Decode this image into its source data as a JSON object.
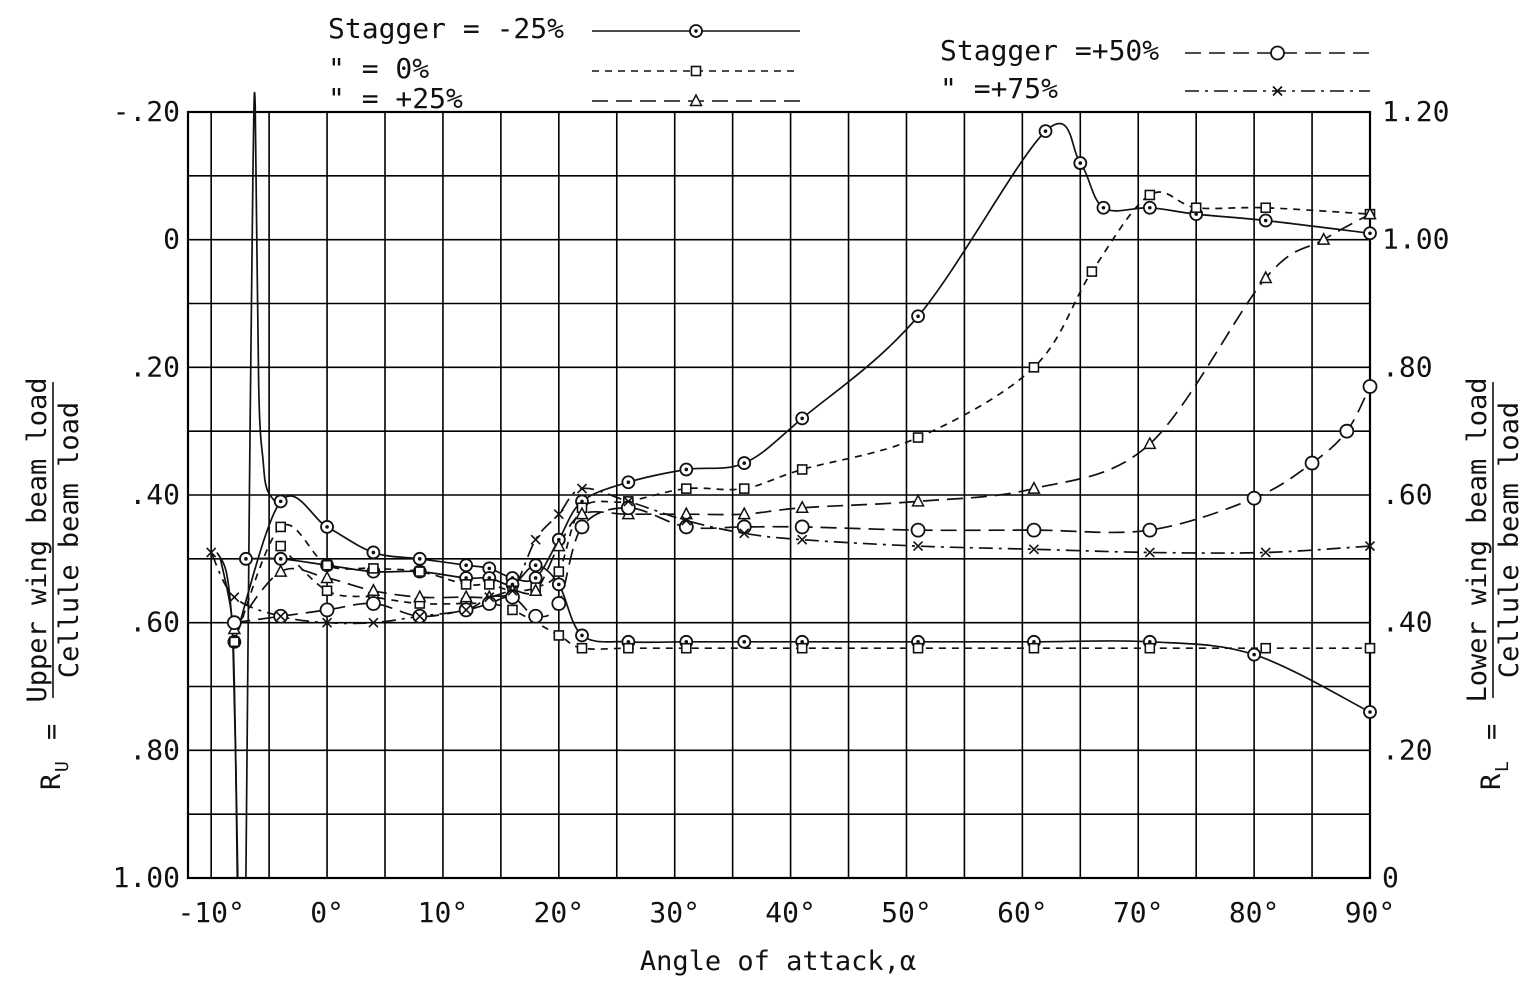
{
  "chart_data": {
    "type": "line",
    "title": "",
    "xlabel": "Angle of attack,α",
    "ylabel": {
      "prefix": "R",
      "sub": "U",
      "equals": "=",
      "numerator": "Upper wing beam load",
      "denominator": "Cellule beam load"
    },
    "y2label": {
      "prefix": "R",
      "sub": "L",
      "equals": "=",
      "numerator": "Lower wing beam load",
      "denominator": "Cellule beam load"
    },
    "xlim": [
      -12,
      90
    ],
    "ylim": [
      1.0,
      -0.2
    ],
    "y2lim": [
      0,
      1.2
    ],
    "grid": true,
    "x_tick_labels": [
      {
        "label": "-10°",
        "value": -10
      },
      {
        "label": "0°",
        "value": 0
      },
      {
        "label": "10°",
        "value": 10
      },
      {
        "label": "20°",
        "value": 20
      },
      {
        "label": "30°",
        "value": 30
      },
      {
        "label": "40°",
        "value": 40
      },
      {
        "label": "50°",
        "value": 50
      },
      {
        "label": "60°",
        "value": 60
      },
      {
        "label": "70°",
        "value": 70
      },
      {
        "label": "80°",
        "value": 80
      },
      {
        "label": "90°",
        "value": 90
      }
    ],
    "y_tick_labels": [
      {
        "label": "-.20",
        "value": -0.2
      },
      {
        "label": "0",
        "value": 0
      },
      {
        "label": ".20",
        "value": 0.2
      },
      {
        "label": ".40",
        "value": 0.4
      },
      {
        "label": ".60",
        "value": 0.6
      },
      {
        "label": ".80",
        "value": 0.8
      },
      {
        "label": "1.00",
        "value": 1.0
      }
    ],
    "y2_tick_labels": [
      {
        "label": "1.20",
        "value": 1.2
      },
      {
        "label": "1.00",
        "value": 1.0
      },
      {
        "label": ".80",
        "value": 0.8
      },
      {
        "label": ".60",
        "value": 0.6
      },
      {
        "label": ".40",
        "value": 0.4
      },
      {
        "label": ".20",
        "value": 0.2
      },
      {
        "label": "0",
        "value": 0
      }
    ],
    "legend": [
      {
        "label": "Stagger = -25%",
        "marker": "circle-dot",
        "dash": "solid"
      },
      {
        "label": "\" = 0%",
        "marker": "square",
        "dash": "short-dash"
      },
      {
        "label": "\" = +25%",
        "marker": "triangle",
        "dash": "long-dash"
      },
      {
        "label": "Stagger =+50%",
        "marker": "circle",
        "dash": "long-dash"
      },
      {
        "label": "\" =+75%",
        "marker": "x",
        "dash": "dash-dot"
      }
    ],
    "legend_position": "top",
    "series": [
      {
        "name": "Stagger = -25%",
        "marker": "circle-dot",
        "dash": "solid",
        "upper": [
          [
            -8,
            0.63
          ],
          [
            -4,
            0.41
          ],
          [
            0,
            0.45
          ],
          [
            4,
            0.49
          ],
          [
            8,
            0.5
          ],
          [
            12,
            0.51
          ],
          [
            14,
            0.515
          ],
          [
            16,
            0.53
          ],
          [
            18,
            0.53
          ],
          [
            20,
            0.47
          ],
          [
            22,
            0.41
          ],
          [
            26,
            0.38
          ],
          [
            31,
            0.36
          ],
          [
            36,
            0.35
          ],
          [
            41,
            0.28
          ],
          [
            51,
            0.12
          ],
          [
            62,
            -0.17
          ],
          [
            65,
            -0.12
          ],
          [
            67,
            -0.05
          ],
          [
            71,
            -0.05
          ],
          [
            75,
            -0.04
          ],
          [
            81,
            -0.03
          ],
          [
            90,
            -0.01
          ]
        ],
        "lower": [
          [
            -7,
            0.5
          ],
          [
            -4,
            0.5
          ],
          [
            0,
            0.51
          ],
          [
            4,
            0.52
          ],
          [
            8,
            0.52
          ],
          [
            12,
            0.53
          ],
          [
            14,
            0.53
          ],
          [
            16,
            0.54
          ],
          [
            18,
            0.51
          ],
          [
            20,
            0.54
          ],
          [
            22,
            0.62
          ],
          [
            26,
            0.63
          ],
          [
            31,
            0.63
          ],
          [
            36,
            0.63
          ],
          [
            41,
            0.63
          ],
          [
            51,
            0.63
          ],
          [
            61,
            0.63
          ],
          [
            71,
            0.63
          ],
          [
            80,
            0.65
          ],
          [
            90,
            0.74
          ]
        ]
      },
      {
        "name": "Stagger = 0%",
        "marker": "square",
        "dash": "short-dash",
        "upper": [
          [
            -8,
            0.63
          ],
          [
            -4,
            0.45
          ],
          [
            0,
            0.51
          ],
          [
            4,
            0.515
          ],
          [
            8,
            0.52
          ],
          [
            12,
            0.54
          ],
          [
            14,
            0.54
          ],
          [
            16,
            0.55
          ],
          [
            18,
            0.545
          ],
          [
            20,
            0.52
          ],
          [
            22,
            0.42
          ],
          [
            26,
            0.41
          ],
          [
            31,
            0.39
          ],
          [
            36,
            0.39
          ],
          [
            41,
            0.36
          ],
          [
            51,
            0.31
          ],
          [
            61,
            0.2
          ],
          [
            66,
            0.05
          ],
          [
            71,
            -0.07
          ],
          [
            75,
            -0.05
          ],
          [
            81,
            -0.05
          ],
          [
            90,
            -0.04
          ]
        ],
        "lower": [
          [
            -4,
            0.48
          ],
          [
            0,
            0.55
          ],
          [
            4,
            0.56
          ],
          [
            8,
            0.57
          ],
          [
            12,
            0.57
          ],
          [
            14,
            0.57
          ],
          [
            16,
            0.58
          ],
          [
            20,
            0.62
          ],
          [
            22,
            0.64
          ],
          [
            26,
            0.64
          ],
          [
            31,
            0.64
          ],
          [
            41,
            0.64
          ],
          [
            51,
            0.64
          ],
          [
            61,
            0.64
          ],
          [
            71,
            0.64
          ],
          [
            81,
            0.64
          ],
          [
            90,
            0.64
          ]
        ]
      },
      {
        "name": "Stagger = +25%",
        "marker": "triangle",
        "dash": "long-dash",
        "upper": [
          [
            -8,
            0.61
          ],
          [
            -4,
            0.52
          ],
          [
            0,
            0.53
          ],
          [
            4,
            0.55
          ],
          [
            8,
            0.56
          ],
          [
            12,
            0.56
          ],
          [
            14,
            0.56
          ],
          [
            16,
            0.55
          ],
          [
            18,
            0.55
          ],
          [
            20,
            0.48
          ],
          [
            22,
            0.43
          ],
          [
            26,
            0.43
          ],
          [
            31,
            0.43
          ],
          [
            36,
            0.43
          ],
          [
            41,
            0.42
          ],
          [
            51,
            0.41
          ],
          [
            61,
            0.39
          ],
          [
            71,
            0.32
          ],
          [
            81,
            0.06
          ],
          [
            86,
            0.0
          ],
          [
            90,
            -0.04
          ]
        ],
        "lower": []
      },
      {
        "name": "Stagger =+50%",
        "marker": "circle",
        "dash": "long-dash",
        "upper": [
          [
            -8,
            0.6
          ],
          [
            -4,
            0.59
          ],
          [
            0,
            0.58
          ],
          [
            4,
            0.57
          ],
          [
            8,
            0.59
          ],
          [
            12,
            0.58
          ],
          [
            14,
            0.57
          ],
          [
            16,
            0.56
          ],
          [
            18,
            0.59
          ],
          [
            20,
            0.57
          ],
          [
            22,
            0.45
          ],
          [
            26,
            0.42
          ],
          [
            31,
            0.45
          ],
          [
            36,
            0.45
          ],
          [
            41,
            0.45
          ],
          [
            51,
            0.455
          ],
          [
            61,
            0.455
          ],
          [
            71,
            0.455
          ],
          [
            80,
            0.405
          ],
          [
            85,
            0.35
          ],
          [
            88,
            0.3
          ],
          [
            90,
            0.23
          ]
        ],
        "lower": []
      },
      {
        "name": "Stagger =+75%",
        "marker": "x",
        "dash": "dash-dot",
        "upper": [
          [
            -10,
            0.49
          ],
          [
            -8,
            0.56
          ],
          [
            -4,
            0.59
          ],
          [
            0,
            0.6
          ],
          [
            4,
            0.6
          ],
          [
            8,
            0.59
          ],
          [
            12,
            0.58
          ],
          [
            14,
            0.56
          ],
          [
            16,
            0.55
          ],
          [
            18,
            0.47
          ],
          [
            20,
            0.43
          ],
          [
            22,
            0.39
          ],
          [
            26,
            0.41
          ],
          [
            31,
            0.44
          ],
          [
            36,
            0.46
          ],
          [
            41,
            0.47
          ],
          [
            51,
            0.48
          ],
          [
            61,
            0.485
          ],
          [
            71,
            0.49
          ],
          [
            81,
            0.49
          ],
          [
            90,
            0.48
          ]
        ],
        "lower": []
      }
    ],
    "spike_curves": {
      "plunge_a": [
        [
          -9.2,
          0.5
        ],
        [
          -8.3,
          0.58
        ],
        [
          -8.1,
          0.65
        ],
        [
          -7.9,
          0.8
        ],
        [
          -7.75,
          1.0
        ]
      ],
      "plunge_b": [
        [
          -9.5,
          0.49
        ],
        [
          -8.7,
          0.52
        ],
        [
          -8.2,
          0.6
        ],
        [
          -8.0,
          0.7
        ],
        [
          -7.7,
          1.0
        ]
      ],
      "spike_up": [
        [
          -7.0,
          1.0
        ],
        [
          -6.7,
          0.4
        ],
        [
          -6.4,
          -0.1
        ],
        [
          -6.2,
          -0.21
        ],
        [
          -5.9,
          0.23
        ],
        [
          -5.5,
          0.35
        ],
        [
          -5.2,
          0.39
        ],
        [
          -4.5,
          0.41
        ]
      ]
    }
  }
}
